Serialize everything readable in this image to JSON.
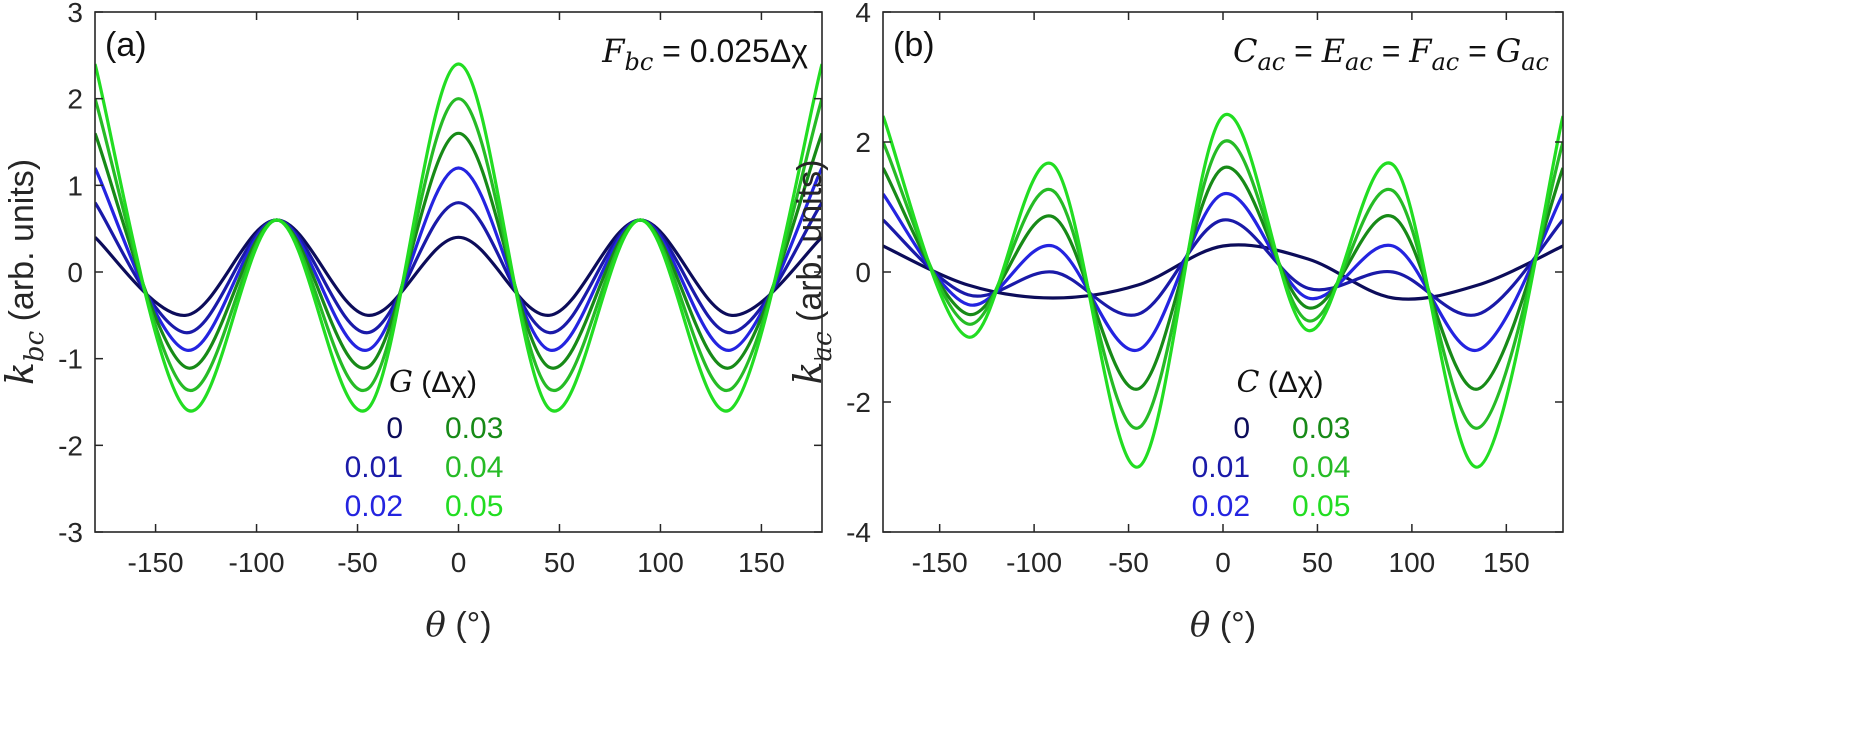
{
  "chart_data": [
    {
      "type": "line",
      "panel_label": "(a)",
      "annotation": {
        "lhs_symbol": "F",
        "lhs_subscript": "bc",
        "rhs": "= 0.025Δχ"
      },
      "ylabel": {
        "symbol": "k",
        "subscript": "bc",
        "text": "(arb. units)"
      },
      "xlabel": {
        "symbol": "θ",
        "text": "(°)"
      },
      "xlim": [
        -180,
        180
      ],
      "ylim": [
        -3,
        3
      ],
      "xticks": [
        -150,
        -100,
        -50,
        0,
        50,
        100,
        150
      ],
      "yticks": [
        -3,
        -2,
        -1,
        0,
        1,
        2,
        3
      ],
      "grid": false,
      "legend": {
        "placement": "lower-center",
        "title_symbol": "G",
        "title_unit": "(Δχ)",
        "entries": [
          "0",
          "0.01",
          "0.02",
          "0.03",
          "0.04",
          "0.05"
        ]
      },
      "series": [
        {
          "name": "0",
          "color": "#0c0c5a",
          "x": [
            -180,
            -135,
            -90,
            -45,
            0,
            45,
            90,
            135,
            180
          ],
          "values": [
            0.4,
            -0.5,
            0.6,
            -0.5,
            0.4,
            -0.5,
            0.6,
            -0.5,
            0.4
          ]
        },
        {
          "name": "0.01",
          "color": "#1a1aa8",
          "x": [
            -180,
            -135,
            -90,
            -45,
            0,
            45,
            90,
            135,
            180
          ],
          "values": [
            0.8,
            -0.7,
            0.6,
            -0.7,
            0.8,
            -0.7,
            0.6,
            -0.7,
            0.8
          ]
        },
        {
          "name": "0.02",
          "color": "#2424e0",
          "x": [
            -180,
            -135,
            -90,
            -45,
            0,
            45,
            90,
            135,
            180
          ],
          "values": [
            1.2,
            -0.9,
            0.6,
            -0.9,
            1.2,
            -0.9,
            0.6,
            -0.9,
            1.2
          ]
        },
        {
          "name": "0.03",
          "color": "#178a17",
          "x": [
            -180,
            -135,
            -90,
            -45,
            0,
            45,
            90,
            135,
            180
          ],
          "values": [
            1.6,
            -1.1,
            0.6,
            -1.1,
            1.6,
            -1.1,
            0.6,
            -1.1,
            1.6
          ]
        },
        {
          "name": "0.04",
          "color": "#26bb26",
          "x": [
            -180,
            -135,
            -90,
            -45,
            0,
            45,
            90,
            135,
            180
          ],
          "values": [
            2.0,
            -1.35,
            0.6,
            -1.35,
            2.0,
            -1.35,
            0.6,
            -1.35,
            2.0
          ]
        },
        {
          "name": "0.05",
          "color": "#22dd22",
          "x": [
            -180,
            -135,
            -90,
            -45,
            0,
            45,
            90,
            135,
            180
          ],
          "values": [
            2.4,
            -1.58,
            0.6,
            -1.58,
            2.4,
            -1.58,
            0.6,
            -1.58,
            2.4
          ]
        }
      ]
    },
    {
      "type": "line",
      "panel_label": "(b)",
      "annotation": {
        "text": "C_ac = E_ac = F_ac = G_ac",
        "parts": [
          [
            "C",
            "ac"
          ],
          [
            "E",
            "ac"
          ],
          [
            "F",
            "ac"
          ],
          [
            "G",
            "ac"
          ]
        ],
        "separator": " = "
      },
      "ylabel": {
        "symbol": "k",
        "subscript": "ac",
        "text": "(arb. units)"
      },
      "xlabel": {
        "symbol": "θ",
        "text": "(°)"
      },
      "xlim": [
        -180,
        180
      ],
      "ylim": [
        -4,
        4
      ],
      "xticks": [
        -150,
        -100,
        -50,
        0,
        50,
        100,
        150
      ],
      "yticks": [
        -4,
        -2,
        0,
        2,
        4
      ],
      "grid": false,
      "legend": {
        "placement": "lower-center",
        "title_symbol": "C",
        "title_unit": "(Δχ)",
        "entries": [
          "0",
          "0.01",
          "0.02",
          "0.03",
          "0.04",
          "0.05"
        ]
      },
      "series": [
        {
          "name": "0",
          "color": "#0c0c5a",
          "x": [
            -180,
            -135,
            -90,
            -45,
            0,
            45,
            90,
            135,
            180
          ],
          "values": [
            0.4,
            -0.2,
            -0.4,
            -0.2,
            0.4,
            0.2,
            -0.4,
            -0.2,
            0.4
          ]
        },
        {
          "name": "0.01",
          "color": "#1a1aa8",
          "x": [
            -180,
            -135,
            -90,
            -45,
            0,
            45,
            90,
            135,
            180
          ],
          "values": [
            0.8,
            -0.35,
            0.0,
            -0.65,
            0.8,
            -0.25,
            0.0,
            -0.65,
            0.8
          ]
        },
        {
          "name": "0.02",
          "color": "#2424e0",
          "x": [
            -180,
            -135,
            -90,
            -45,
            0,
            45,
            90,
            135,
            180
          ],
          "values": [
            1.2,
            -0.5,
            0.4,
            -1.2,
            1.2,
            -0.4,
            0.4,
            -1.2,
            1.2
          ]
        },
        {
          "name": "0.03",
          "color": "#178a17",
          "x": [
            -180,
            -135,
            -90,
            -45,
            0,
            45,
            90,
            135,
            180
          ],
          "values": [
            1.6,
            -0.65,
            0.85,
            -1.8,
            1.6,
            -0.55,
            0.85,
            -1.8,
            1.6
          ]
        },
        {
          "name": "0.04",
          "color": "#26bb26",
          "x": [
            -180,
            -135,
            -90,
            -45,
            0,
            45,
            90,
            135,
            180
          ],
          "values": [
            2.0,
            -0.8,
            1.25,
            -2.4,
            2.0,
            -0.75,
            1.25,
            -2.4,
            2.0
          ]
        },
        {
          "name": "0.05",
          "color": "#22dd22",
          "x": [
            -180,
            -135,
            -90,
            -45,
            0,
            45,
            90,
            135,
            180
          ],
          "values": [
            2.4,
            -1.0,
            1.65,
            -3.0,
            2.4,
            -0.9,
            1.65,
            -3.0,
            2.4
          ]
        }
      ]
    }
  ]
}
